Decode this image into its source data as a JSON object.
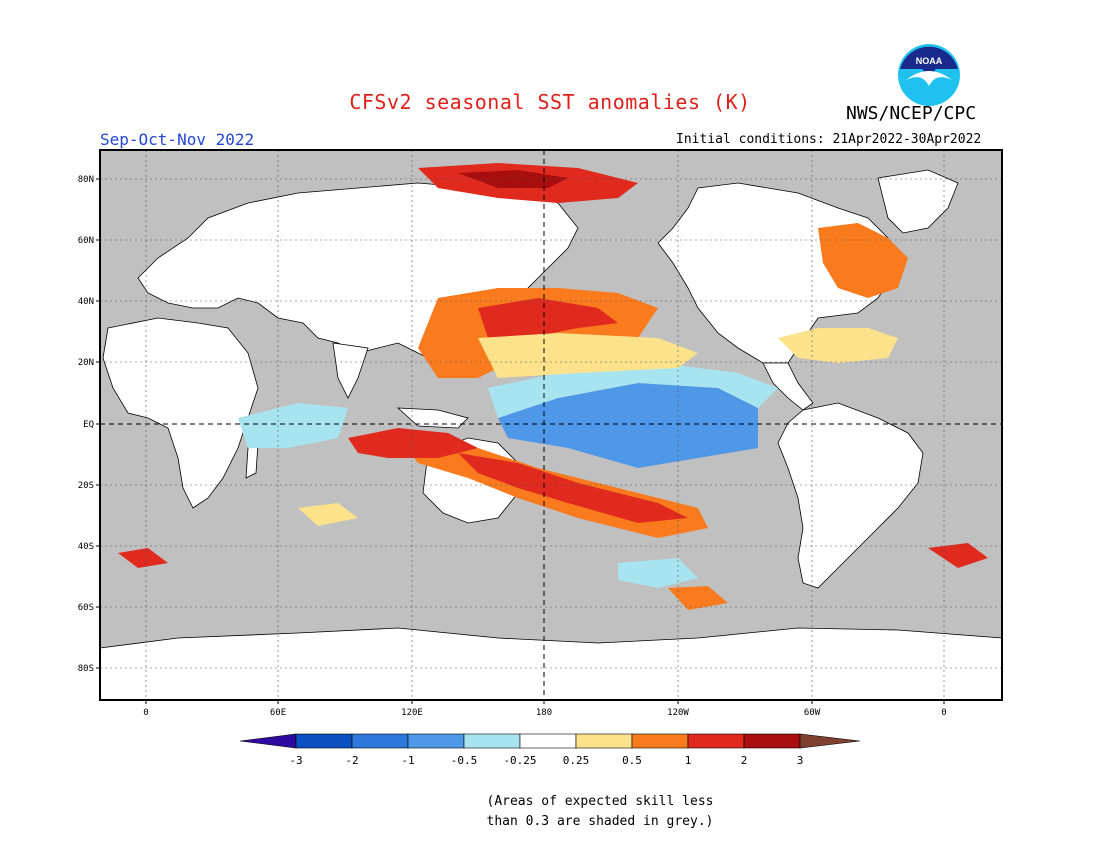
{
  "title": "CFSv2 seasonal SST anomalies (K)",
  "agency": "NWS/NCEP/CPC",
  "logo_text": "NOAA",
  "season": "Sep-Oct-Nov 2022",
  "initial_conditions": "Initial conditions: 21Apr2022-30Apr2022",
  "note": "(Areas of expected skill less\nthan 0.3 are shaded in grey.)",
  "map": {
    "lat_labels": [
      "80N",
      "60N",
      "40N",
      "20N",
      "EQ",
      "20S",
      "40S",
      "60S",
      "80S"
    ],
    "lon_labels": [
      "0",
      "60E",
      "120E",
      "180",
      "120W",
      "60W",
      "0"
    ],
    "colors": {
      "grey": "#c0c0c0",
      "land": "#ffffff",
      "strong_neg": "#2a6ad6",
      "neg": "#4f98e8",
      "weak_neg": "#a8e4f0",
      "weak_pos": "#fde28c",
      "pos": "#fa7a1e",
      "strong_pos": "#e02a1e",
      "max_pos": "#a80e0e"
    }
  },
  "colorbar": {
    "labels": [
      "-3",
      "-2",
      "-1",
      "-0.5",
      "-0.25",
      "0.25",
      "0.5",
      "1",
      "2",
      "3"
    ],
    "colors": [
      "#2f0aa0",
      "#0a50c0",
      "#2e78dc",
      "#4f98e8",
      "#a8e4f0",
      "#ffffff",
      "#fde28c",
      "#fa7a1e",
      "#e02a1e",
      "#a80e0e",
      "#804030"
    ]
  }
}
